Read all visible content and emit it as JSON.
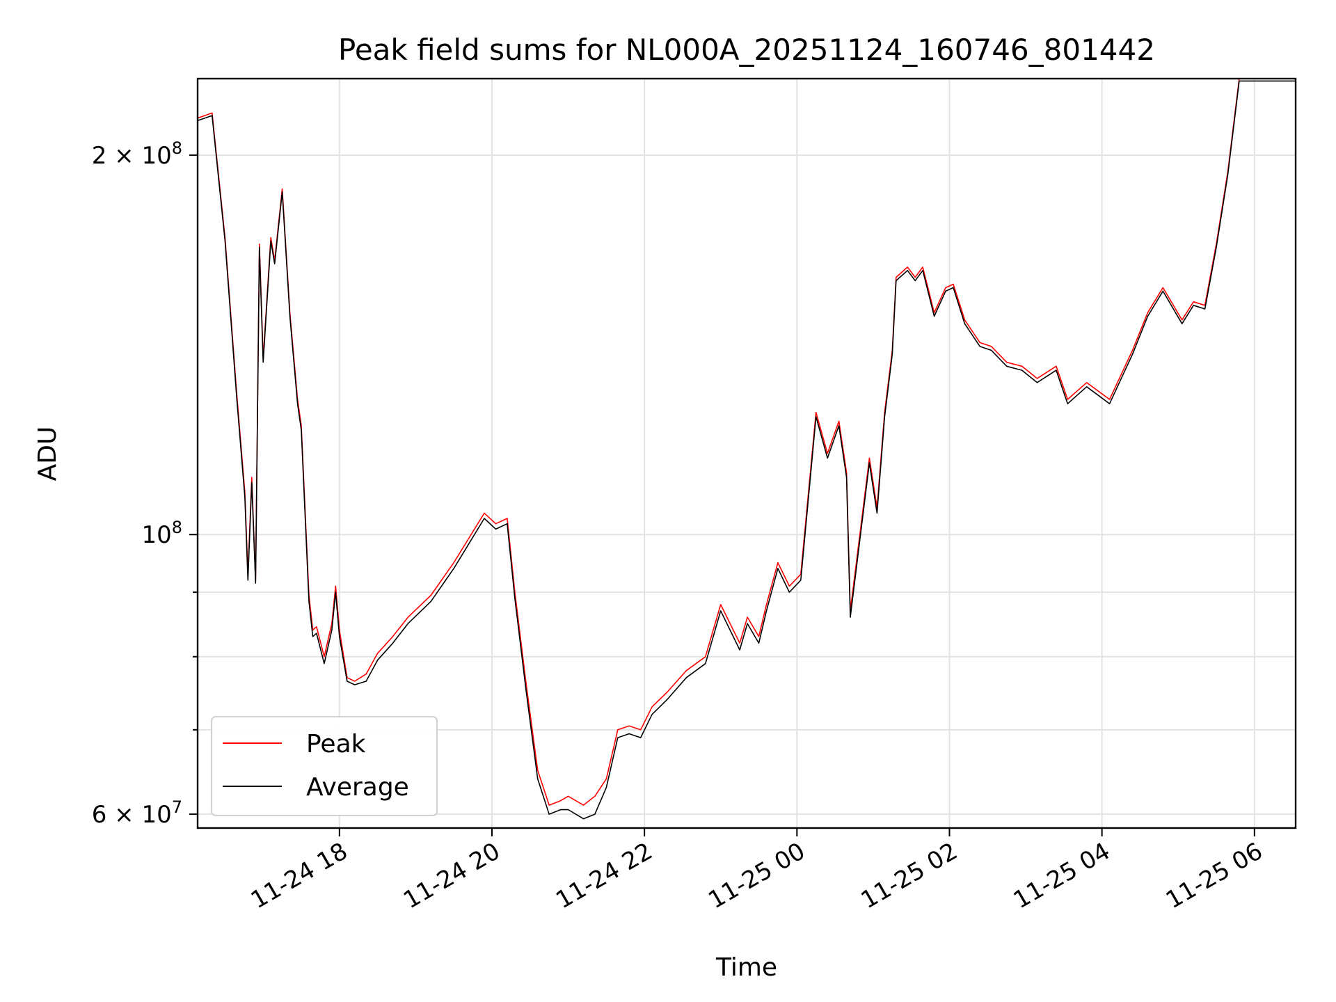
{
  "chart_data": {
    "type": "line",
    "title": "Peak field sums for NL000A_20251124_160746_801442",
    "xlabel": "Time",
    "ylabel": "ADU",
    "yscale": "log",
    "grid": true,
    "legend_position": "lower-left",
    "x_range_hours": [
      16.14,
      30.54
    ],
    "ylim": [
      58500000,
      230000000
    ],
    "x_ticks": [
      {
        "hour": 18,
        "label": "11-24 18"
      },
      {
        "hour": 20,
        "label": "11-24 20"
      },
      {
        "hour": 22,
        "label": "11-24 22"
      },
      {
        "hour": 24,
        "label": "11-25 00"
      },
      {
        "hour": 26,
        "label": "11-25 02"
      },
      {
        "hour": 28,
        "label": "11-25 04"
      },
      {
        "hour": 30,
        "label": "11-25 06"
      }
    ],
    "y_ticks": [
      {
        "value": 60000000,
        "label": "6 × 10",
        "exp": "7"
      },
      {
        "value": 100000000,
        "label": "10",
        "exp": "8"
      },
      {
        "value": 200000000,
        "label": "2 × 10",
        "exp": "8"
      }
    ],
    "y_minor_ticks": [
      70000000,
      80000000,
      90000000
    ],
    "x_hours": [
      16.14,
      16.33,
      16.5,
      16.65,
      16.76,
      16.8,
      16.85,
      16.9,
      16.95,
      17.0,
      17.1,
      17.15,
      17.25,
      17.3,
      17.35,
      17.45,
      17.5,
      17.6,
      17.65,
      17.7,
      17.8,
      17.9,
      17.95,
      18.0,
      18.1,
      18.2,
      18.35,
      18.5,
      18.7,
      18.9,
      19.2,
      19.5,
      19.9,
      20.05,
      20.2,
      20.3,
      20.45,
      20.6,
      20.75,
      20.9,
      21.0,
      21.2,
      21.35,
      21.5,
      21.65,
      21.8,
      21.95,
      22.1,
      22.3,
      22.55,
      22.8,
      23.0,
      23.25,
      23.35,
      23.5,
      23.6,
      23.75,
      23.9,
      24.05,
      24.25,
      24.4,
      24.55,
      24.65,
      24.7,
      24.75,
      24.95,
      25.05,
      25.15,
      25.25,
      25.3,
      25.45,
      25.55,
      25.65,
      25.8,
      25.95,
      26.05,
      26.2,
      26.4,
      26.55,
      26.75,
      26.95,
      27.15,
      27.4,
      27.55,
      27.8,
      28.1,
      28.4,
      28.6,
      28.8,
      29.05,
      29.2,
      29.35,
      29.5,
      29.65,
      29.8,
      29.95,
      30.1,
      30.3,
      30.54
    ],
    "series": [
      {
        "name": "Peak",
        "color": "#ff0000",
        "values": [
          214000000,
          216000000,
          172000000,
          130000000,
          108000000,
          93000000,
          111000000,
          92000000,
          170000000,
          138000000,
          172000000,
          165000000,
          188000000,
          168000000,
          150000000,
          128000000,
          122000000,
          89500000,
          84000000,
          84500000,
          80000000,
          85000000,
          91000000,
          84000000,
          77000000,
          76500000,
          77500000,
          80500000,
          83000000,
          86000000,
          89500000,
          95000000,
          104000000,
          102000000,
          103000000,
          90000000,
          76000000,
          65000000,
          61000000,
          61500000,
          62000000,
          61000000,
          62000000,
          64000000,
          70000000,
          70500000,
          70000000,
          73000000,
          75000000,
          78000000,
          80000000,
          88000000,
          82000000,
          86000000,
          83000000,
          88000000,
          95000000,
          91000000,
          93000000,
          125000000,
          116000000,
          123000000,
          112000000,
          87000000,
          92000000,
          115000000,
          105000000,
          125000000,
          140000000,
          160000000,
          163000000,
          160000000,
          163000000,
          150000000,
          157000000,
          158000000,
          148000000,
          142000000,
          141000000,
          137000000,
          136000000,
          133000000,
          136000000,
          128000000,
          132000000,
          128000000,
          140000000,
          150000000,
          157000000,
          148000000,
          153000000,
          152000000,
          170000000,
          194000000,
          230000000,
          230000000,
          230000000,
          230000000,
          230000000
        ]
      },
      {
        "name": "Average",
        "color": "#000000",
        "values": [
          213000000,
          215000000,
          171000000,
          129000000,
          107000000,
          92000000,
          110000000,
          91500000,
          169000000,
          137000000,
          171000000,
          164000000,
          187000000,
          167000000,
          149000000,
          127000000,
          121000000,
          88500000,
          83000000,
          83500000,
          79000000,
          84000000,
          90000000,
          83000000,
          76500000,
          76000000,
          76500000,
          79500000,
          82000000,
          85000000,
          88500000,
          94000000,
          103000000,
          101000000,
          102000000,
          89000000,
          75000000,
          64000000,
          60000000,
          60500000,
          60500000,
          59500000,
          60000000,
          63000000,
          69000000,
          69500000,
          69000000,
          72000000,
          74000000,
          77000000,
          79000000,
          87000000,
          81000000,
          85000000,
          82000000,
          87000000,
          94000000,
          90000000,
          92000000,
          124000000,
          115000000,
          122000000,
          111000000,
          86000000,
          91000000,
          114000000,
          104000000,
          124000000,
          139000000,
          159000000,
          162000000,
          159000000,
          162000000,
          149000000,
          156000000,
          157000000,
          147000000,
          141000000,
          140000000,
          136000000,
          135000000,
          132000000,
          135000000,
          127000000,
          131000000,
          127000000,
          139000000,
          149000000,
          156000000,
          147000000,
          152000000,
          151000000,
          169000000,
          193000000,
          229000000,
          229000000,
          229000000,
          229000000,
          229000000
        ]
      }
    ]
  }
}
